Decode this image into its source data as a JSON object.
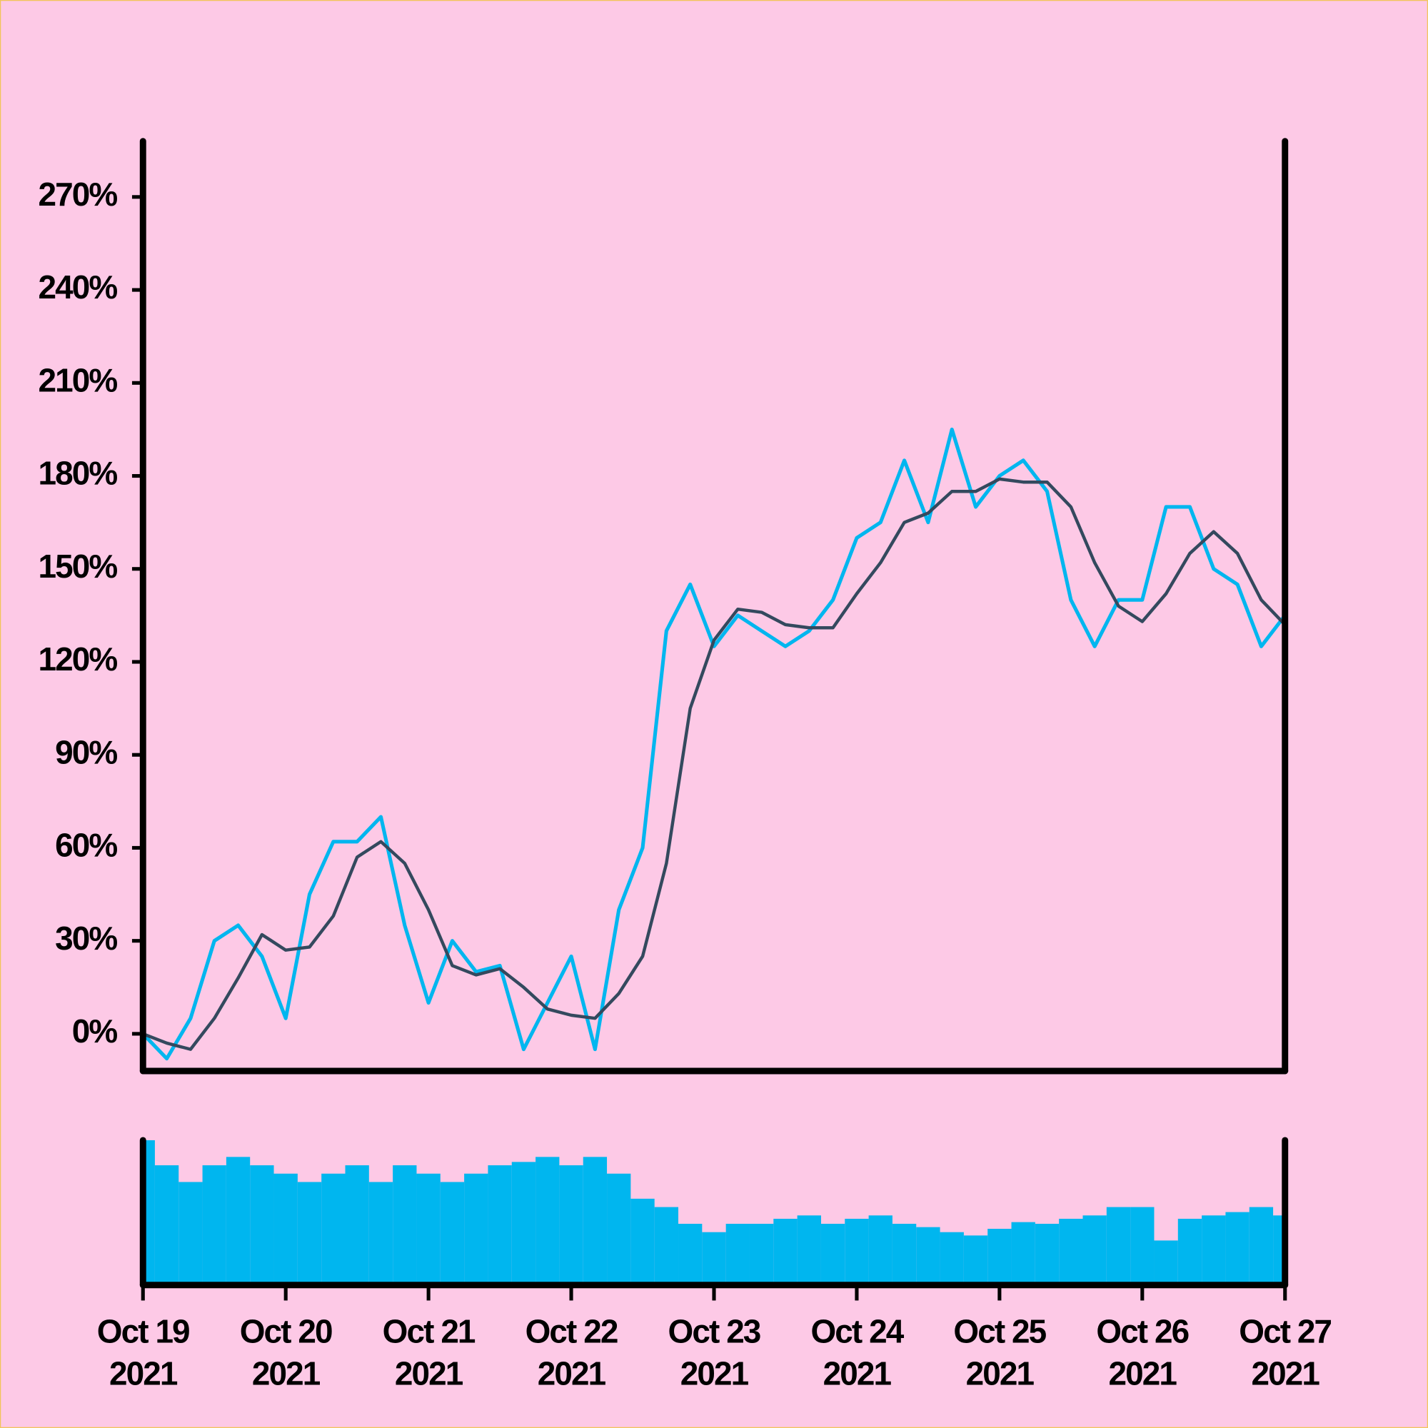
{
  "chart_data": [
    {
      "type": "line",
      "x": [
        "2021-10-19T00:00",
        "2021-10-19T04:00",
        "2021-10-19T08:00",
        "2021-10-19T12:00",
        "2021-10-19T16:00",
        "2021-10-19T20:00",
        "2021-10-20T00:00",
        "2021-10-20T04:00",
        "2021-10-20T08:00",
        "2021-10-20T12:00",
        "2021-10-20T16:00",
        "2021-10-20T20:00",
        "2021-10-21T00:00",
        "2021-10-21T04:00",
        "2021-10-21T08:00",
        "2021-10-21T12:00",
        "2021-10-21T16:00",
        "2021-10-21T20:00",
        "2021-10-22T00:00",
        "2021-10-22T04:00",
        "2021-10-22T08:00",
        "2021-10-22T12:00",
        "2021-10-22T16:00",
        "2021-10-22T20:00",
        "2021-10-23T00:00",
        "2021-10-23T04:00",
        "2021-10-23T08:00",
        "2021-10-23T12:00",
        "2021-10-23T16:00",
        "2021-10-23T20:00",
        "2021-10-24T00:00",
        "2021-10-24T04:00",
        "2021-10-24T08:00",
        "2021-10-24T12:00",
        "2021-10-24T16:00",
        "2021-10-24T20:00",
        "2021-10-25T00:00",
        "2021-10-25T04:00",
        "2021-10-25T08:00",
        "2021-10-25T12:00",
        "2021-10-25T16:00",
        "2021-10-25T20:00",
        "2021-10-26T00:00",
        "2021-10-26T04:00",
        "2021-10-26T08:00",
        "2021-10-26T12:00",
        "2021-10-26T16:00",
        "2021-10-26T20:00",
        "2021-10-27T00:00"
      ],
      "series": [
        {
          "color": "#00b6ef",
          "values": [
            0,
            -8,
            5,
            30,
            35,
            25,
            5,
            45,
            62,
            62,
            70,
            35,
            10,
            30,
            20,
            22,
            -5,
            10,
            25,
            -5,
            40,
            60,
            130,
            145,
            125,
            135,
            130,
            125,
            130,
            140,
            160,
            165,
            185,
            165,
            195,
            170,
            180,
            185,
            175,
            140,
            125,
            140,
            140,
            170,
            170,
            150,
            145,
            125,
            135
          ]
        },
        {
          "color": "#34495e",
          "values": [
            0,
            -3,
            -5,
            5,
            18,
            32,
            27,
            28,
            38,
            57,
            62,
            55,
            40,
            22,
            19,
            21,
            15,
            8,
            6,
            5,
            13,
            25,
            55,
            105,
            127,
            137,
            136,
            132,
            131,
            131,
            142,
            152,
            165,
            168,
            175,
            175,
            179,
            178,
            178,
            170,
            152,
            138,
            133,
            142,
            155,
            162,
            155,
            140,
            132
          ]
        }
      ],
      "xlim": [
        "2021-10-19T00:00",
        "2021-10-27T00:00"
      ],
      "ylim": [
        -12,
        288
      ],
      "yticks": [
        {
          "value": 0,
          "label": "0%"
        },
        {
          "value": 30,
          "label": "30%"
        },
        {
          "value": 60,
          "label": "60%"
        },
        {
          "value": 90,
          "label": "90%"
        },
        {
          "value": 120,
          "label": "120%"
        },
        {
          "value": 150,
          "label": "150%"
        },
        {
          "value": 180,
          "label": "180%"
        },
        {
          "value": 210,
          "label": "210%"
        },
        {
          "value": 240,
          "label": "240%"
        },
        {
          "value": 270,
          "label": "270%"
        }
      ]
    },
    {
      "type": "bar",
      "x": [
        "2021-10-19T00:00",
        "2021-10-19T04:00",
        "2021-10-19T08:00",
        "2021-10-19T12:00",
        "2021-10-19T16:00",
        "2021-10-19T20:00",
        "2021-10-20T00:00",
        "2021-10-20T04:00",
        "2021-10-20T08:00",
        "2021-10-20T12:00",
        "2021-10-20T16:00",
        "2021-10-20T20:00",
        "2021-10-21T00:00",
        "2021-10-21T04:00",
        "2021-10-21T08:00",
        "2021-10-21T12:00",
        "2021-10-21T16:00",
        "2021-10-21T20:00",
        "2021-10-22T00:00",
        "2021-10-22T04:00",
        "2021-10-22T08:00",
        "2021-10-22T12:00",
        "2021-10-22T16:00",
        "2021-10-22T20:00",
        "2021-10-23T00:00",
        "2021-10-23T04:00",
        "2021-10-23T08:00",
        "2021-10-23T12:00",
        "2021-10-23T16:00",
        "2021-10-23T20:00",
        "2021-10-24T00:00",
        "2021-10-24T04:00",
        "2021-10-24T08:00",
        "2021-10-24T12:00",
        "2021-10-24T16:00",
        "2021-10-24T20:00",
        "2021-10-25T00:00",
        "2021-10-25T04:00",
        "2021-10-25T08:00",
        "2021-10-25T12:00",
        "2021-10-25T16:00",
        "2021-10-25T20:00",
        "2021-10-26T00:00",
        "2021-10-26T04:00",
        "2021-10-26T08:00",
        "2021-10-26T12:00",
        "2021-10-26T16:00",
        "2021-10-26T20:00",
        "2021-10-27T00:00"
      ],
      "values": [
        85,
        70,
        60,
        70,
        75,
        70,
        65,
        60,
        65,
        70,
        60,
        70,
        65,
        60,
        65,
        70,
        72,
        75,
        70,
        75,
        65,
        50,
        45,
        35,
        30,
        35,
        35,
        38,
        40,
        35,
        38,
        40,
        35,
        33,
        30,
        28,
        32,
        36,
        35,
        38,
        40,
        45,
        45,
        25,
        38,
        40,
        42,
        45,
        40
      ],
      "color": "#00b6ef",
      "xlim": [
        "2021-10-19T00:00",
        "2021-10-27T00:00"
      ],
      "xticks": [
        {
          "value": "2021-10-19T00:00",
          "label": [
            "Oct 19",
            "2021"
          ]
        },
        {
          "value": "2021-10-20T00:00",
          "label": [
            "Oct 20",
            "2021"
          ]
        },
        {
          "value": "2021-10-21T00:00",
          "label": [
            "Oct 21",
            "2021"
          ]
        },
        {
          "value": "2021-10-22T00:00",
          "label": [
            "Oct 22",
            "2021"
          ]
        },
        {
          "value": "2021-10-23T00:00",
          "label": [
            "Oct 23",
            "2021"
          ]
        },
        {
          "value": "2021-10-24T00:00",
          "label": [
            "Oct 24",
            "2021"
          ]
        },
        {
          "value": "2021-10-25T00:00",
          "label": [
            "Oct 25",
            "2021"
          ]
        },
        {
          "value": "2021-10-26T00:00",
          "label": [
            "Oct 26",
            "2021"
          ]
        },
        {
          "value": "2021-10-27T00:00",
          "label": [
            "Oct 27",
            "2021"
          ]
        }
      ]
    }
  ]
}
